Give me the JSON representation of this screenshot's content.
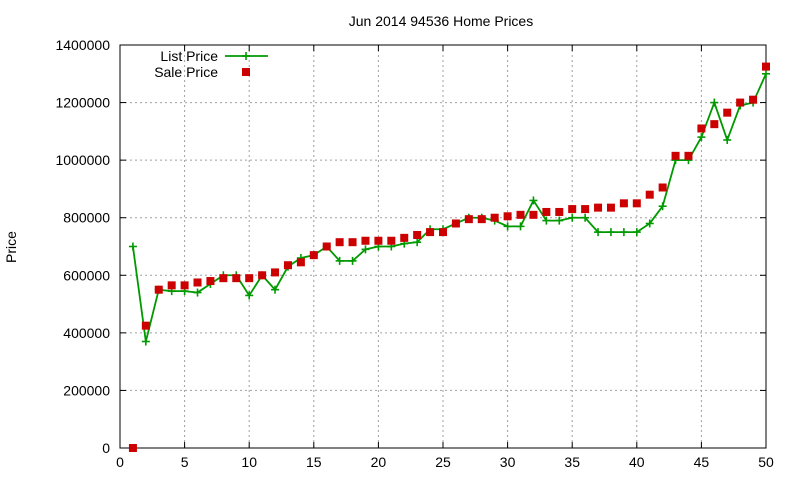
{
  "chart_data": {
    "type": "line",
    "title": "Jun 2014 94536 Home Prices",
    "xlabel": "",
    "ylabel": "Price",
    "xlim": [
      0,
      50
    ],
    "ylim": [
      0,
      1400000
    ],
    "x_ticks": [
      0,
      5,
      10,
      15,
      20,
      25,
      30,
      35,
      40,
      45,
      50
    ],
    "y_ticks": [
      0,
      200000,
      400000,
      600000,
      800000,
      1000000,
      1200000,
      1400000
    ],
    "x_tick_labels": [
      "0",
      "5",
      "10",
      "15",
      "20",
      "25",
      "30",
      "35",
      "40",
      "45",
      "50"
    ],
    "y_tick_labels": [
      "0",
      "200000",
      "400000",
      "600000",
      "800000",
      "1000000",
      "1200000",
      "1400000"
    ],
    "grid": true,
    "legend_position": "top-left",
    "series": [
      {
        "name": "List Price",
        "style": "line-with-plus-markers",
        "color": "#009900",
        "x": [
          1,
          2,
          3,
          4,
          5,
          6,
          7,
          8,
          9,
          10,
          11,
          12,
          13,
          14,
          15,
          16,
          17,
          18,
          19,
          20,
          21,
          22,
          23,
          24,
          25,
          26,
          27,
          28,
          29,
          30,
          31,
          32,
          33,
          34,
          35,
          36,
          37,
          38,
          39,
          40,
          41,
          42,
          43,
          44,
          45,
          46,
          47,
          48,
          49,
          50
        ],
        "values": [
          700000,
          370000,
          550000,
          545000,
          545000,
          540000,
          570000,
          600000,
          600000,
          530000,
          600000,
          550000,
          630000,
          660000,
          670000,
          700000,
          650000,
          650000,
          690000,
          700000,
          700000,
          710000,
          715000,
          760000,
          760000,
          780000,
          800000,
          800000,
          790000,
          770000,
          770000,
          860000,
          790000,
          790000,
          800000,
          800000,
          750000,
          750000,
          750000,
          750000,
          780000,
          840000,
          1000000,
          1000000,
          1080000,
          1200000,
          1070000,
          1190000,
          1200000,
          1300000
        ]
      },
      {
        "name": "Sale Price",
        "style": "square-markers",
        "color": "#cc0000",
        "x": [
          1,
          2,
          3,
          4,
          5,
          6,
          7,
          8,
          9,
          10,
          11,
          12,
          13,
          14,
          15,
          16,
          17,
          18,
          19,
          20,
          21,
          22,
          23,
          24,
          25,
          26,
          27,
          28,
          29,
          30,
          31,
          32,
          33,
          34,
          35,
          36,
          37,
          38,
          39,
          40,
          41,
          42,
          43,
          44,
          45,
          46,
          47,
          48,
          49,
          50
        ],
        "values": [
          0,
          425000,
          550000,
          565000,
          565000,
          575000,
          580000,
          590000,
          590000,
          590000,
          600000,
          610000,
          635000,
          645000,
          670000,
          700000,
          715000,
          715000,
          720000,
          720000,
          720000,
          730000,
          740000,
          750000,
          750000,
          780000,
          795000,
          795000,
          800000,
          805000,
          810000,
          810000,
          820000,
          820000,
          830000,
          830000,
          835000,
          835000,
          850000,
          850000,
          880000,
          905000,
          1015000,
          1015000,
          1110000,
          1125000,
          1165000,
          1200000,
          1210000,
          1325000
        ]
      }
    ]
  }
}
